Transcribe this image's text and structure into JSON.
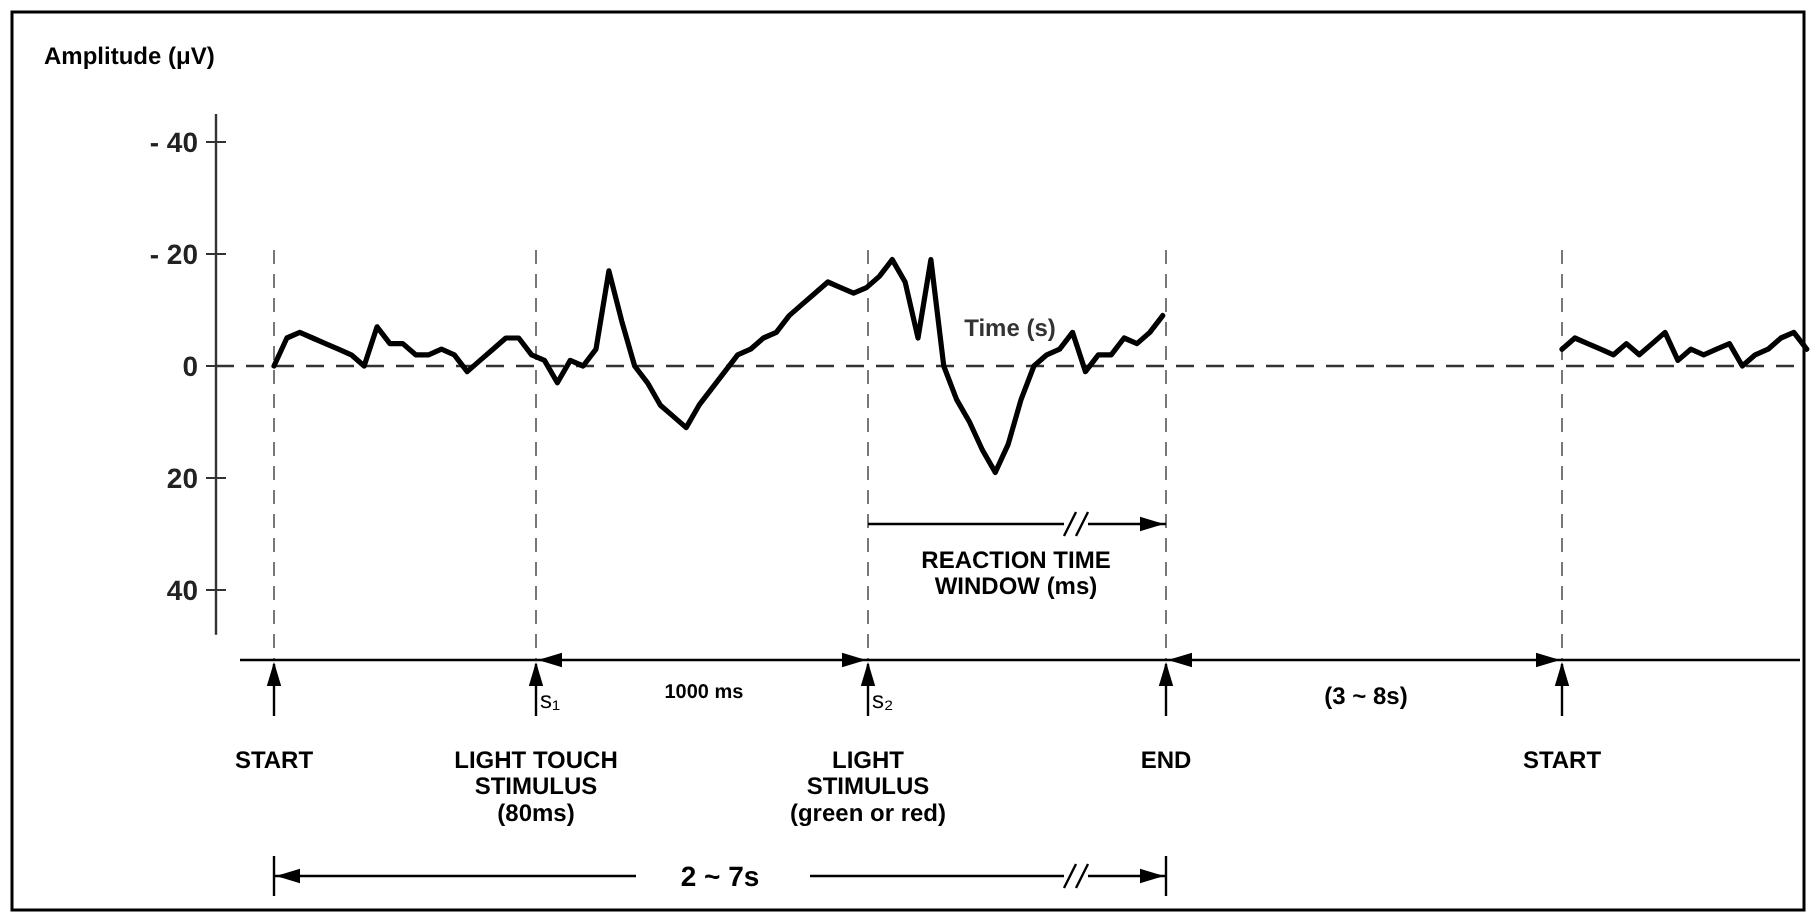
{
  "chart_data": {
    "type": "line",
    "ylabel": "Amplitude (μV)",
    "xlabel": "Time (s)",
    "categories": [
      null,
      null,
      null,
      null,
      null,
      null,
      null,
      null,
      null,
      null,
      null,
      null,
      null,
      null,
      null,
      null,
      null,
      null,
      null,
      null,
      null,
      null,
      null,
      null,
      null,
      null,
      null,
      null,
      null,
      null,
      null,
      null,
      null,
      null,
      null,
      null,
      null,
      null,
      null,
      null,
      null,
      null,
      null,
      null,
      null,
      null,
      null,
      null,
      null,
      null,
      null,
      null,
      null,
      null,
      null,
      null,
      null,
      null,
      null,
      null,
      null,
      null,
      null,
      null,
      null,
      null,
      null,
      null,
      null,
      null,
      null,
      null,
      null,
      null,
      null,
      null,
      null,
      null,
      null,
      null,
      null,
      null,
      null,
      null,
      null,
      null,
      null,
      null,
      null,
      null,
      null,
      null,
      null,
      null,
      null,
      null,
      null,
      null,
      null,
      null,
      null,
      null,
      null,
      null,
      null,
      null,
      null,
      null,
      null,
      null,
      null,
      null,
      null,
      null,
      null,
      null,
      null,
      null,
      null,
      null
    ],
    "series": [
      {
        "color": "#000000",
        "values": [
          0,
          -5,
          -6,
          -5,
          -4,
          -3,
          -2,
          0,
          -7,
          -4,
          -4,
          -2,
          -2,
          -3,
          -2,
          1,
          -1,
          -3,
          -5,
          -5,
          -2,
          -1,
          3,
          -1,
          0,
          -3,
          -17,
          -8,
          0,
          3,
          7,
          9,
          11,
          7,
          4,
          1,
          -2,
          -3,
          -5,
          -6,
          -9,
          -11,
          -13,
          -15,
          -14,
          -13,
          -14,
          -16,
          -19,
          -15,
          -5,
          -19,
          0,
          6,
          10,
          15,
          19,
          14,
          6,
          0,
          -2,
          -3,
          -6,
          1,
          -2,
          -2,
          -5,
          -4,
          -6,
          -9,
          null,
          null,
          null,
          null,
          null,
          null,
          null,
          null,
          null,
          null,
          null,
          null,
          null,
          null,
          null,
          null,
          null,
          null,
          null,
          null,
          null,
          null,
          null,
          null,
          null,
          null,
          null,
          null,
          null,
          null,
          null,
          null,
          null,
          null,
          null,
          null,
          null,
          null,
          null,
          null,
          null,
          null,
          null,
          null,
          null,
          null,
          null,
          null,
          null,
          null
        ]
      },
      {
        "color": "#000000",
        "values": [
          null,
          null,
          null,
          null,
          null,
          null,
          null,
          null,
          null,
          null,
          null,
          null,
          null,
          null,
          null,
          null,
          null,
          null,
          null,
          null,
          null,
          null,
          null,
          null,
          null,
          null,
          null,
          null,
          null,
          null,
          null,
          null,
          null,
          null,
          null,
          null,
          null,
          null,
          null,
          null,
          null,
          null,
          null,
          null,
          null,
          null,
          null,
          null,
          null,
          null,
          null,
          null,
          null,
          null,
          null,
          null,
          null,
          null,
          null,
          null,
          null,
          null,
          null,
          null,
          null,
          null,
          null,
          null,
          null,
          null,
          null,
          null,
          null,
          null,
          null,
          null,
          null,
          null,
          null,
          null,
          null,
          null,
          null,
          null,
          null,
          null,
          null,
          null,
          null,
          null,
          null,
          null,
          null,
          null,
          null,
          null,
          null,
          null,
          null,
          null,
          -3,
          -5,
          -4,
          -3,
          -2,
          -4,
          -2,
          -4,
          -6,
          -1,
          -3,
          -2,
          -3,
          -4,
          0,
          -2,
          -3,
          -5,
          -6,
          -3
        ]
      }
    ],
    "ylim": [
      48,
      -45
    ],
    "yticks": [
      {
        "value": -40,
        "label": "- 40"
      },
      {
        "value": -20,
        "label": "- 20"
      },
      0,
      20,
      40
    ],
    "ref_lines": [
      {
        "axis": "y",
        "value": 0,
        "line_style": "dashed",
        "color": "#333333"
      }
    ],
    "tick_labels": "y",
    "grid": false,
    "marker": "none",
    "line_style": "solid",
    "annotations": [
      "START",
      "s₁",
      "LIGHT TOUCH\nSTIMULUS\n(80ms)",
      "1000 ms",
      "s₂",
      "LIGHT\nSTIMULUS\n(green or red)",
      "REACTION TIME\nWINDOW (ms)",
      "END",
      "(3 ~ 8s)",
      "START",
      "2 ~ 7s"
    ]
  }
}
